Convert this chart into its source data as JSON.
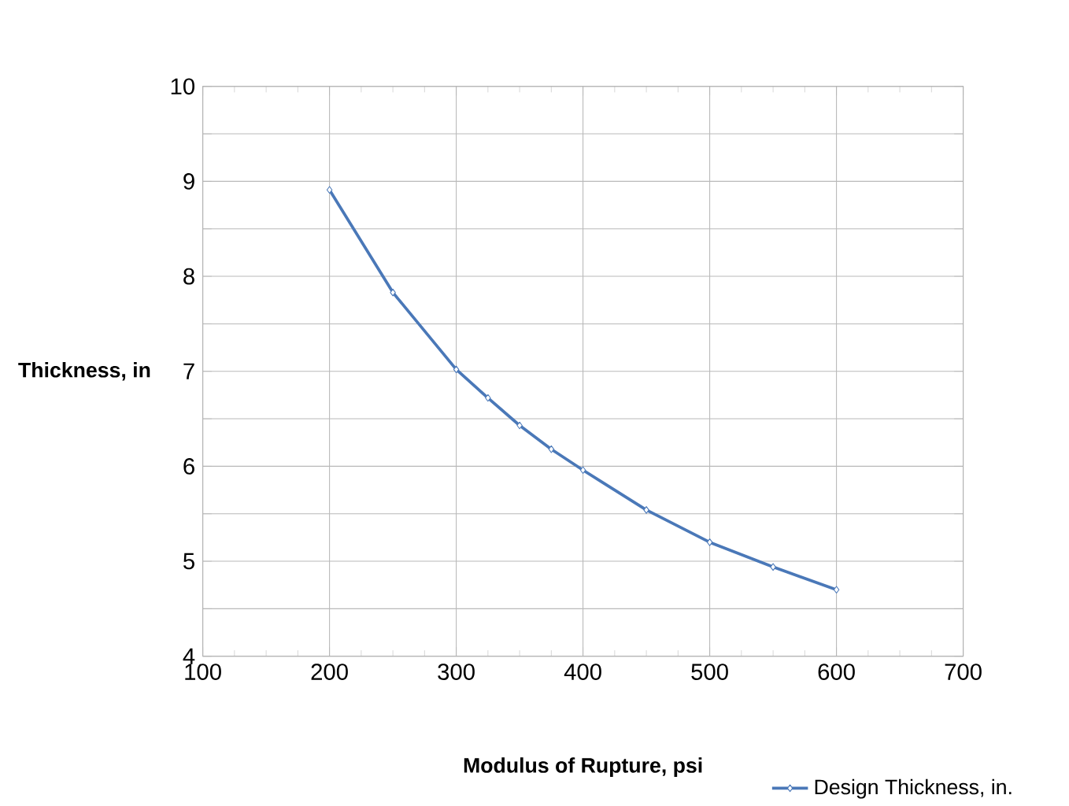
{
  "chart_data": {
    "type": "line",
    "xlabel": "Modulus of Rupture, psi",
    "ylabel": "Thickness, in",
    "x": [
      200,
      250,
      300,
      325,
      350,
      375,
      400,
      450,
      500,
      550,
      600
    ],
    "series": [
      {
        "name": "Design Thickness, in.",
        "color": "#4a78b8",
        "values": [
          8.91,
          7.83,
          7.02,
          6.72,
          6.43,
          6.18,
          5.96,
          5.54,
          5.2,
          4.94,
          4.7
        ]
      }
    ],
    "xlim": [
      100,
      700
    ],
    "xticks": [
      100,
      200,
      300,
      400,
      500,
      600,
      700
    ],
    "ylim": [
      4,
      10
    ],
    "yticks": [
      4,
      {
        "value": 4.5,
        "label": null
      },
      5,
      {
        "value": 5.5,
        "label": null
      },
      6,
      {
        "value": 6.5,
        "label": null
      },
      7,
      {
        "value": 7.5,
        "label": null
      },
      8,
      {
        "value": 8.5,
        "label": null
      },
      9,
      {
        "value": 9.5,
        "label": null
      },
      10
    ],
    "grid": true,
    "legend": "bottom right",
    "marker": "diamond",
    "line_style": "solid"
  }
}
